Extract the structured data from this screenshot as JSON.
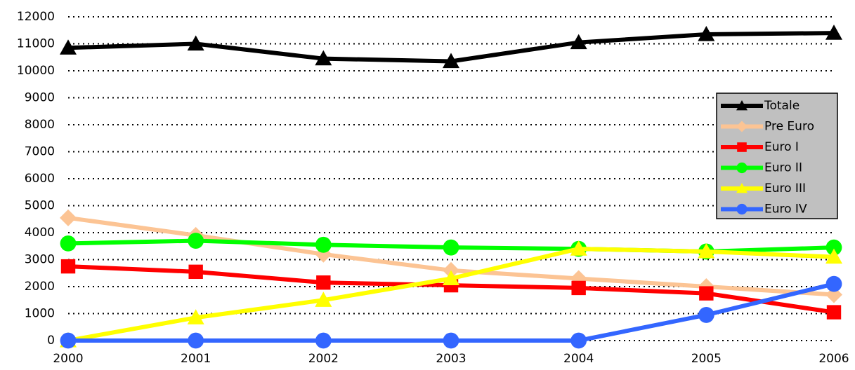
{
  "chart_data": {
    "type": "line",
    "categories": [
      "2000",
      "2001",
      "2002",
      "2003",
      "2004",
      "2005",
      "2006"
    ],
    "series": [
      {
        "name": "Totale",
        "color": "#000000",
        "marker": "triangle",
        "values": [
          10850,
          11000,
          10450,
          10350,
          11050,
          11350,
          11400
        ]
      },
      {
        "name": "Pre Euro",
        "color": "#fcc494",
        "marker": "diamond",
        "values": [
          4550,
          3900,
          3200,
          2600,
          2300,
          2000,
          1700
        ]
      },
      {
        "name": "Euro I",
        "color": "#ff0000",
        "marker": "square",
        "values": [
          2750,
          2550,
          2150,
          2050,
          1950,
          1750,
          1050
        ]
      },
      {
        "name": "Euro II",
        "color": "#00ff00",
        "marker": "circle",
        "values": [
          3600,
          3700,
          3550,
          3450,
          3400,
          3300,
          3450
        ]
      },
      {
        "name": "Euro III",
        "color": "#ffff00",
        "marker": "triangle",
        "values": [
          0,
          850,
          1500,
          2300,
          3400,
          3300,
          3100
        ]
      },
      {
        "name": "Euro IV",
        "color": "#3366ff",
        "marker": "circle",
        "values": [
          0,
          0,
          0,
          0,
          0,
          950,
          2100
        ]
      }
    ],
    "ylim": [
      0,
      12000
    ],
    "yticks": [
      0,
      1000,
      2000,
      3000,
      4000,
      5000,
      6000,
      7000,
      8000,
      9000,
      10000,
      11000,
      12000
    ],
    "grid": true,
    "legend": "right"
  }
}
